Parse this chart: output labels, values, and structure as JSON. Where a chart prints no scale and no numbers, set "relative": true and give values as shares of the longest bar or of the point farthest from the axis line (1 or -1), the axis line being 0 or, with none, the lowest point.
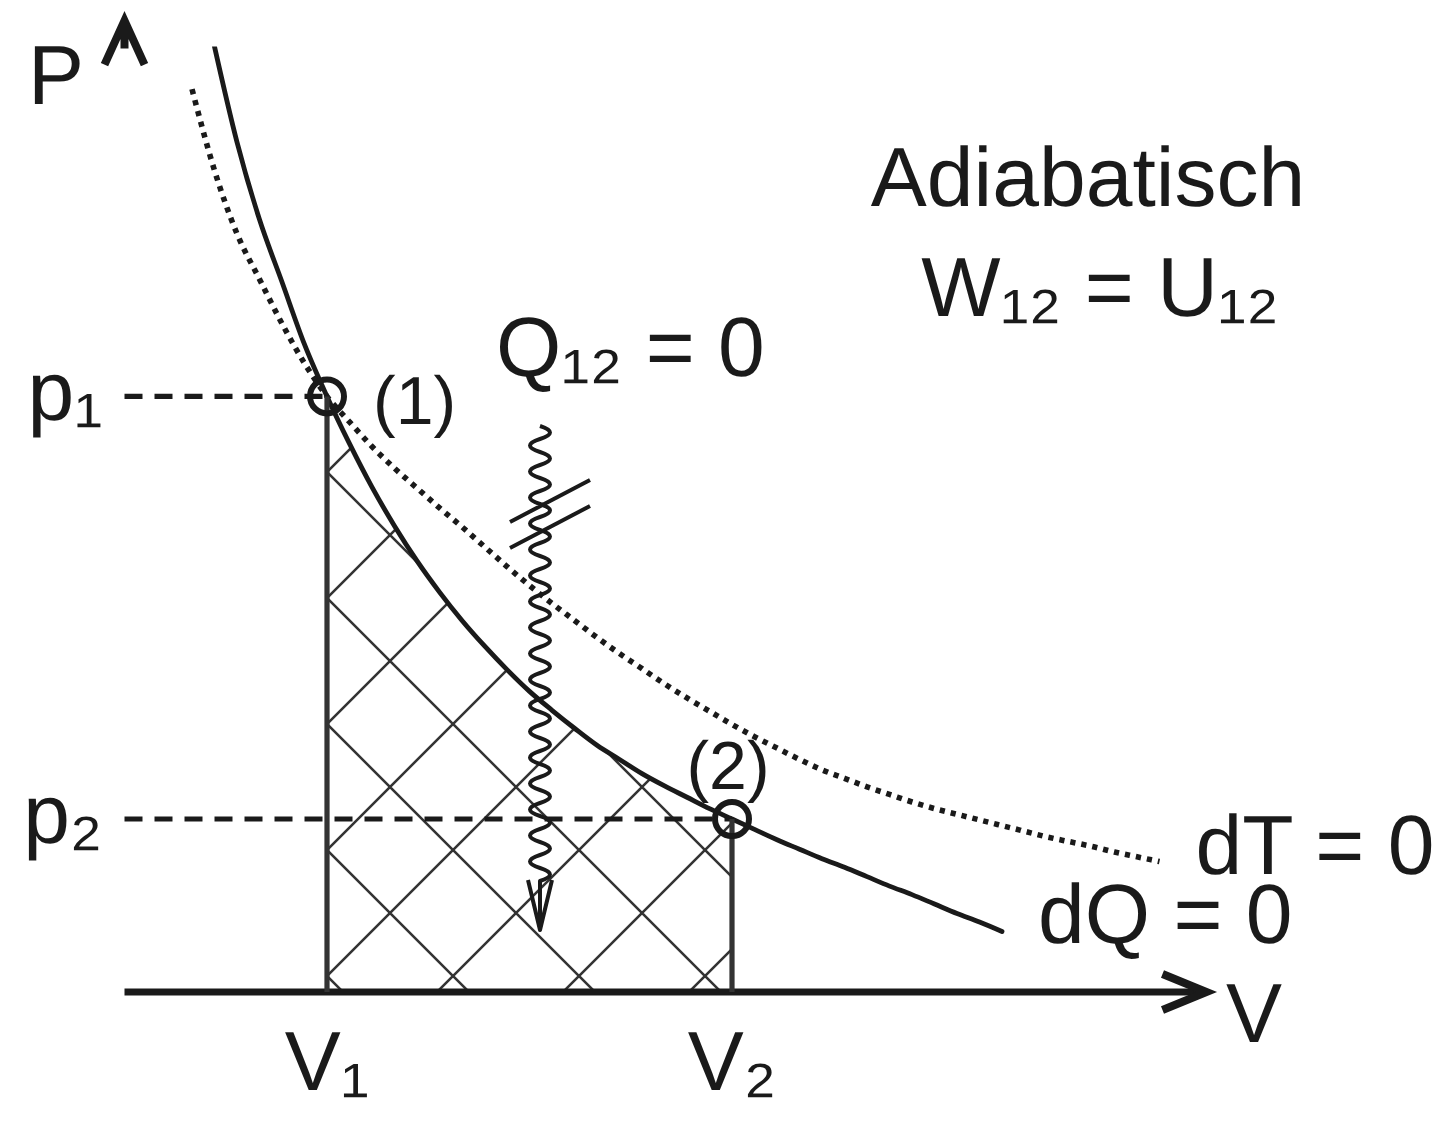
{
  "chart_data": {
    "type": "line",
    "title": "Adiabatisch",
    "xlabel": "V",
    "ylabel": "P",
    "relative": true,
    "categories": [
      null,
      null,
      null,
      null,
      null,
      null,
      null,
      null,
      null,
      "V₁",
      null,
      null,
      null,
      null,
      null,
      null,
      null,
      null,
      null,
      null,
      null,
      null,
      null,
      null,
      null,
      null,
      null,
      "V₂",
      null,
      null,
      null,
      null,
      null,
      null,
      null,
      null,
      null,
      null,
      null,
      null,
      null,
      null,
      null,
      null,
      null,
      null,
      null,
      null,
      null
    ],
    "series": [
      {
        "name": "dQ = 0",
        "type": "line",
        "color": "#1a1a1a",
        "line_style": "solid",
        "marker": "none",
        "values": [
          null,
          null,
          null,
          null,
          1.0,
          0.899,
          0.817,
          0.751,
          0.685,
          0.63,
          0.58,
          0.534,
          0.493,
          0.456,
          0.423,
          0.393,
          0.366,
          0.341,
          0.318,
          0.298,
          0.279,
          0.261,
          0.246,
          0.231,
          0.218,
          0.206,
          0.194,
          0.183,
          0.172,
          0.161,
          0.151,
          0.141,
          0.132,
          0.122,
          0.112,
          0.103,
          0.093,
          0.083,
          0.074,
          0.064,
          null,
          null,
          null,
          null,
          null,
          null,
          null,
          null,
          null
        ]
      },
      {
        "name": "dT = 0",
        "type": "line",
        "color": "#1a1a1a",
        "line_style": "dotted",
        "marker": "none",
        "values": [
          null,
          null,
          null,
          0.955,
          0.869,
          0.802,
          0.754,
          0.707,
          0.665,
          0.63,
          0.603,
          0.577,
          0.554,
          0.533,
          0.512,
          0.492,
          0.471,
          0.45,
          0.43,
          0.411,
          0.393,
          0.375,
          0.358,
          0.342,
          0.326,
          0.311,
          0.297,
          0.283,
          0.27,
          0.258,
          0.246,
          0.235,
          0.226,
          0.217,
          0.209,
          0.201,
          0.194,
          0.188,
          0.182,
          0.176,
          0.17,
          0.164,
          0.159,
          0.154,
          0.148,
          0.143,
          0.138,
          null,
          null
        ]
      },
      {
        "type": "area",
        "color": "#333333",
        "values": [
          null,
          null,
          null,
          null,
          null,
          null,
          null,
          null,
          null,
          0.63,
          0.58,
          0.534,
          0.493,
          0.456,
          0.423,
          0.393,
          0.366,
          0.341,
          0.318,
          0.298,
          0.279,
          0.261,
          0.246,
          0.231,
          0.218,
          0.206,
          0.194,
          0.183,
          null,
          null,
          null,
          null,
          null,
          null,
          null,
          null,
          null,
          null,
          null,
          null,
          null,
          null,
          null,
          null,
          null,
          null,
          null,
          null,
          null
        ]
      },
      {
        "type": "scatter",
        "color": "#1a1a1a",
        "marker": "circle",
        "x": [
          "V₁",
          "V₂"
        ],
        "values": [
          0.63,
          0.183
        ]
      }
    ],
    "ref_lines": [
      {
        "axis": "y",
        "value": 0.63,
        "label": "p₁",
        "line_style": "dashed",
        "color": "#1a1a1a"
      },
      {
        "axis": "y",
        "value": 0.183,
        "label": "p₂",
        "line_style": "dashed",
        "color": "#1a1a1a"
      }
    ],
    "annotations": [
      "W₁₂ = U₁₂",
      "Q₁₂ = 0",
      {
        "text": "(1)",
        "x": "V₁",
        "y": 0.63
      },
      {
        "text": "(2)",
        "x": "V₂",
        "y": 0.183
      }
    ]
  }
}
